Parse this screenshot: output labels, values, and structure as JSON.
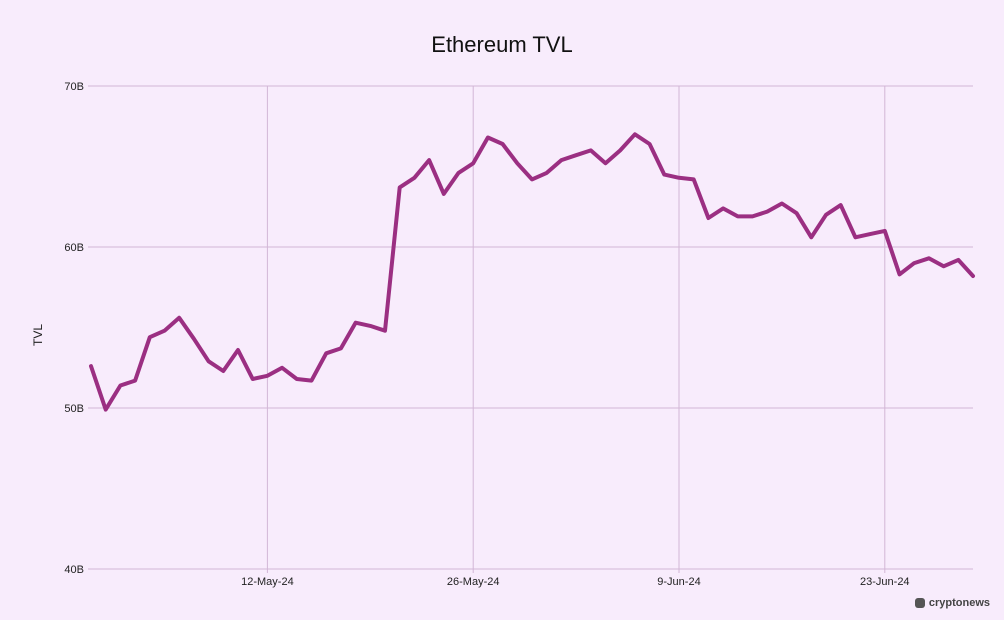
{
  "header": {
    "title": "Ethereum TVL"
  },
  "logo": {
    "text": "cryptonews"
  },
  "colors": {
    "line": "#9b2f82",
    "grid": "#d2b6d6",
    "background": "#f8ecfc"
  },
  "chart_data": {
    "type": "line",
    "title": "Ethereum TVL",
    "xlabel": "",
    "ylabel": "TVL",
    "ylim": [
      40,
      70
    ],
    "y_unit": "B",
    "y_ticks": [
      "40B",
      "50B",
      "60B",
      "70B"
    ],
    "x_ticks": [
      "12-May-24",
      "26-May-24",
      "9-Jun-24",
      "23-Jun-24"
    ],
    "grid": true,
    "legend": "none",
    "x_start": "30-Apr-24",
    "x_end": "29-Jun-24",
    "series": [
      {
        "name": "TVL",
        "values": [
          52.6,
          49.9,
          51.4,
          51.7,
          54.4,
          54.8,
          55.6,
          54.3,
          52.9,
          52.3,
          53.6,
          51.8,
          52.0,
          52.5,
          51.8,
          51.7,
          53.4,
          53.7,
          55.3,
          55.1,
          54.8,
          63.7,
          64.3,
          65.4,
          63.3,
          64.6,
          65.2,
          66.8,
          66.4,
          65.2,
          64.2,
          64.6,
          65.4,
          65.7,
          66.0,
          65.2,
          66.0,
          67.0,
          66.4,
          64.5,
          64.3,
          64.2,
          61.8,
          62.4,
          61.9,
          61.9,
          62.2,
          62.7,
          62.1,
          60.6,
          62.0,
          62.6,
          60.6,
          60.8,
          61.0,
          58.3,
          59.0,
          59.3,
          58.8,
          59.2,
          58.2
        ]
      }
    ]
  }
}
